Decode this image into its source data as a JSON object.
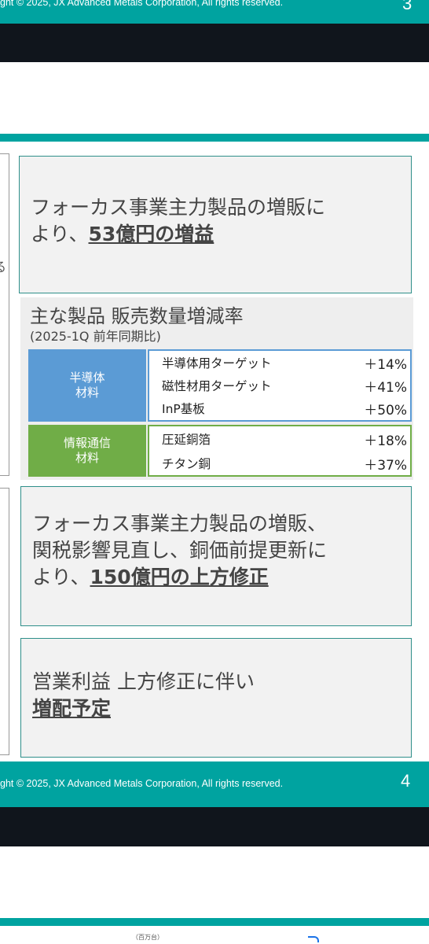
{
  "footer_top": {
    "text": "ght © 2025, JX Advanced Metals Corporation, All rights reserved.",
    "page": "3"
  },
  "callout1": {
    "line1": "フォーカス事業主力製品の増販に",
    "line2_pre": "より、",
    "line2_strong": "53億円の増益"
  },
  "left_cut_char": "る",
  "sales_panel": {
    "title": "主な製品 販売数量増減率",
    "subtitle": "(2025-1Q 前年同期比)",
    "groups": [
      {
        "category_line1": "半導体",
        "category_line2": "材料",
        "color": "#5b9bd5",
        "rows": [
          {
            "product": "半導体用ターゲット",
            "change": "＋14%"
          },
          {
            "product": "磁性材用ターゲット",
            "change": "＋41%"
          },
          {
            "product": "InP基板",
            "change": "＋50%"
          }
        ]
      },
      {
        "category_line1": "情報通信",
        "category_line2": "材料",
        "color": "#70ad47",
        "rows": [
          {
            "product": "圧延銅箔",
            "change": "＋18%"
          },
          {
            "product": "チタン銅",
            "change": "＋37%"
          }
        ]
      }
    ]
  },
  "callout2": {
    "line1": "フォーカス事業主力製品の増販、",
    "line2": "関税影響見直し、銅価前提更新に",
    "line3_pre": "より、",
    "line3_strong": "150億円の上方修正"
  },
  "callout3": {
    "line1": "営業利益 上方修正に伴い",
    "line2_strong": "増配予定"
  },
  "footer_bottom": {
    "text": "ght © 2025, JX Advanced Metals Corporation, All rights reserved.",
    "page": "4"
  },
  "next_slide": {
    "unit_label": "（百万台）"
  }
}
